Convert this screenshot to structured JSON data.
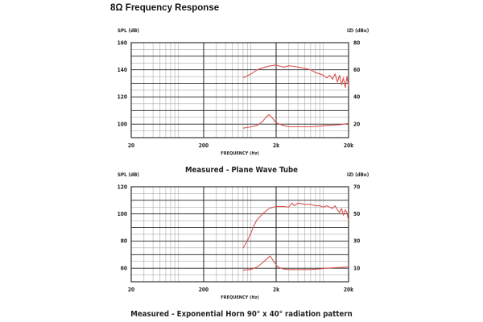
{
  "page": {
    "title": "8Ω Frequency Response"
  },
  "chart_data": [
    {
      "type": "line",
      "caption": "Measured - Plane Wave Tube",
      "xlabel": "FREQUENCY (Hz)",
      "ylabel": "SPL (dB)",
      "y2label": "IZI (dBo)",
      "x_scale": "log",
      "xlim": [
        20,
        20000
      ],
      "x_ticks": [
        20,
        200,
        2000,
        20000
      ],
      "x_tick_labels": [
        "20",
        "200",
        "2k",
        "20k"
      ],
      "ylim": [
        90,
        160
      ],
      "y_ticks": [
        100,
        120,
        140,
        160
      ],
      "y_tick_labels": [
        "100",
        "120",
        "140",
        "160"
      ],
      "y2lim": [
        5,
        80
      ],
      "y2_tick_labels": [
        "20",
        "40",
        "60",
        "80"
      ],
      "grid": true,
      "series": [
        {
          "color": "#d9534f",
          "axis": "left",
          "x": [
            700,
            900,
            1100,
            1400,
            1700,
            2000,
            2300,
            2600,
            3000,
            3500,
            4000,
            5000,
            6000,
            7000,
            8000,
            9000,
            10000,
            11000,
            12000,
            13000,
            14000,
            15000,
            16000,
            17000,
            18000,
            19000,
            20000
          ],
          "y": [
            134,
            137,
            140,
            142,
            143,
            143.5,
            142.5,
            142,
            143,
            142.5,
            142,
            141,
            140,
            138,
            137,
            136,
            134,
            136,
            133,
            137,
            131,
            136,
            129,
            134,
            127,
            135,
            128
          ]
        },
        {
          "color": "#d9534f",
          "axis": "left",
          "x": [
            700,
            900,
            1100,
            1300,
            1450,
            1600,
            1800,
            2000,
            2500,
            3000,
            4000,
            6000,
            8000,
            10000,
            15000,
            20000
          ],
          "y": [
            97,
            98,
            99,
            102,
            105,
            107,
            104,
            101,
            99,
            98,
            98,
            98,
            98.5,
            99,
            99.5,
            100.5
          ]
        }
      ]
    },
    {
      "type": "line",
      "caption": "Measured - Exponential Horn 90° x 40° radiation pattern",
      "xlabel": "FREQUENCY (Hz)",
      "ylabel": "SPL (dB)",
      "y2label": "IZI (dBo)",
      "x_scale": "log",
      "xlim": [
        20,
        20000
      ],
      "x_ticks": [
        20,
        200,
        2000,
        20000
      ],
      "x_tick_labels": [
        "20",
        "200",
        "2k",
        "20k"
      ],
      "ylim": [
        50,
        120
      ],
      "y_ticks": [
        60,
        80,
        100,
        120
      ],
      "y_tick_labels": [
        "60",
        "80",
        "100",
        "120"
      ],
      "y2lim": [
        0,
        70
      ],
      "y2_tick_labels": [
        "10",
        "30",
        "50",
        "70"
      ],
      "grid": true,
      "series": [
        {
          "color": "#d9534f",
          "axis": "left",
          "x": [
            700,
            800,
            900,
            1000,
            1100,
            1300,
            1600,
            2000,
            2500,
            3000,
            3300,
            3600,
            4000,
            5000,
            6000,
            7000,
            8000,
            9000,
            10000,
            12000,
            13000,
            14000,
            15000,
            16000,
            17000,
            18000,
            19000,
            20000
          ],
          "y": [
            75,
            80,
            86,
            92,
            96,
            100,
            104,
            105.5,
            105.5,
            105,
            108,
            106,
            108,
            107,
            107,
            106,
            106,
            105,
            106,
            104,
            106,
            103,
            101,
            104,
            99,
            103,
            101,
            95
          ]
        },
        {
          "color": "#d9534f",
          "axis": "left",
          "x": [
            700,
            900,
            1100,
            1300,
            1500,
            1650,
            1850,
            2100,
            2500,
            3000,
            4000,
            6000,
            8000,
            10000,
            15000,
            20000
          ],
          "y": [
            58.5,
            59,
            61,
            64,
            67,
            69,
            65,
            61,
            59.5,
            59,
            59,
            59,
            59.5,
            60,
            60.5,
            61
          ]
        }
      ]
    }
  ]
}
